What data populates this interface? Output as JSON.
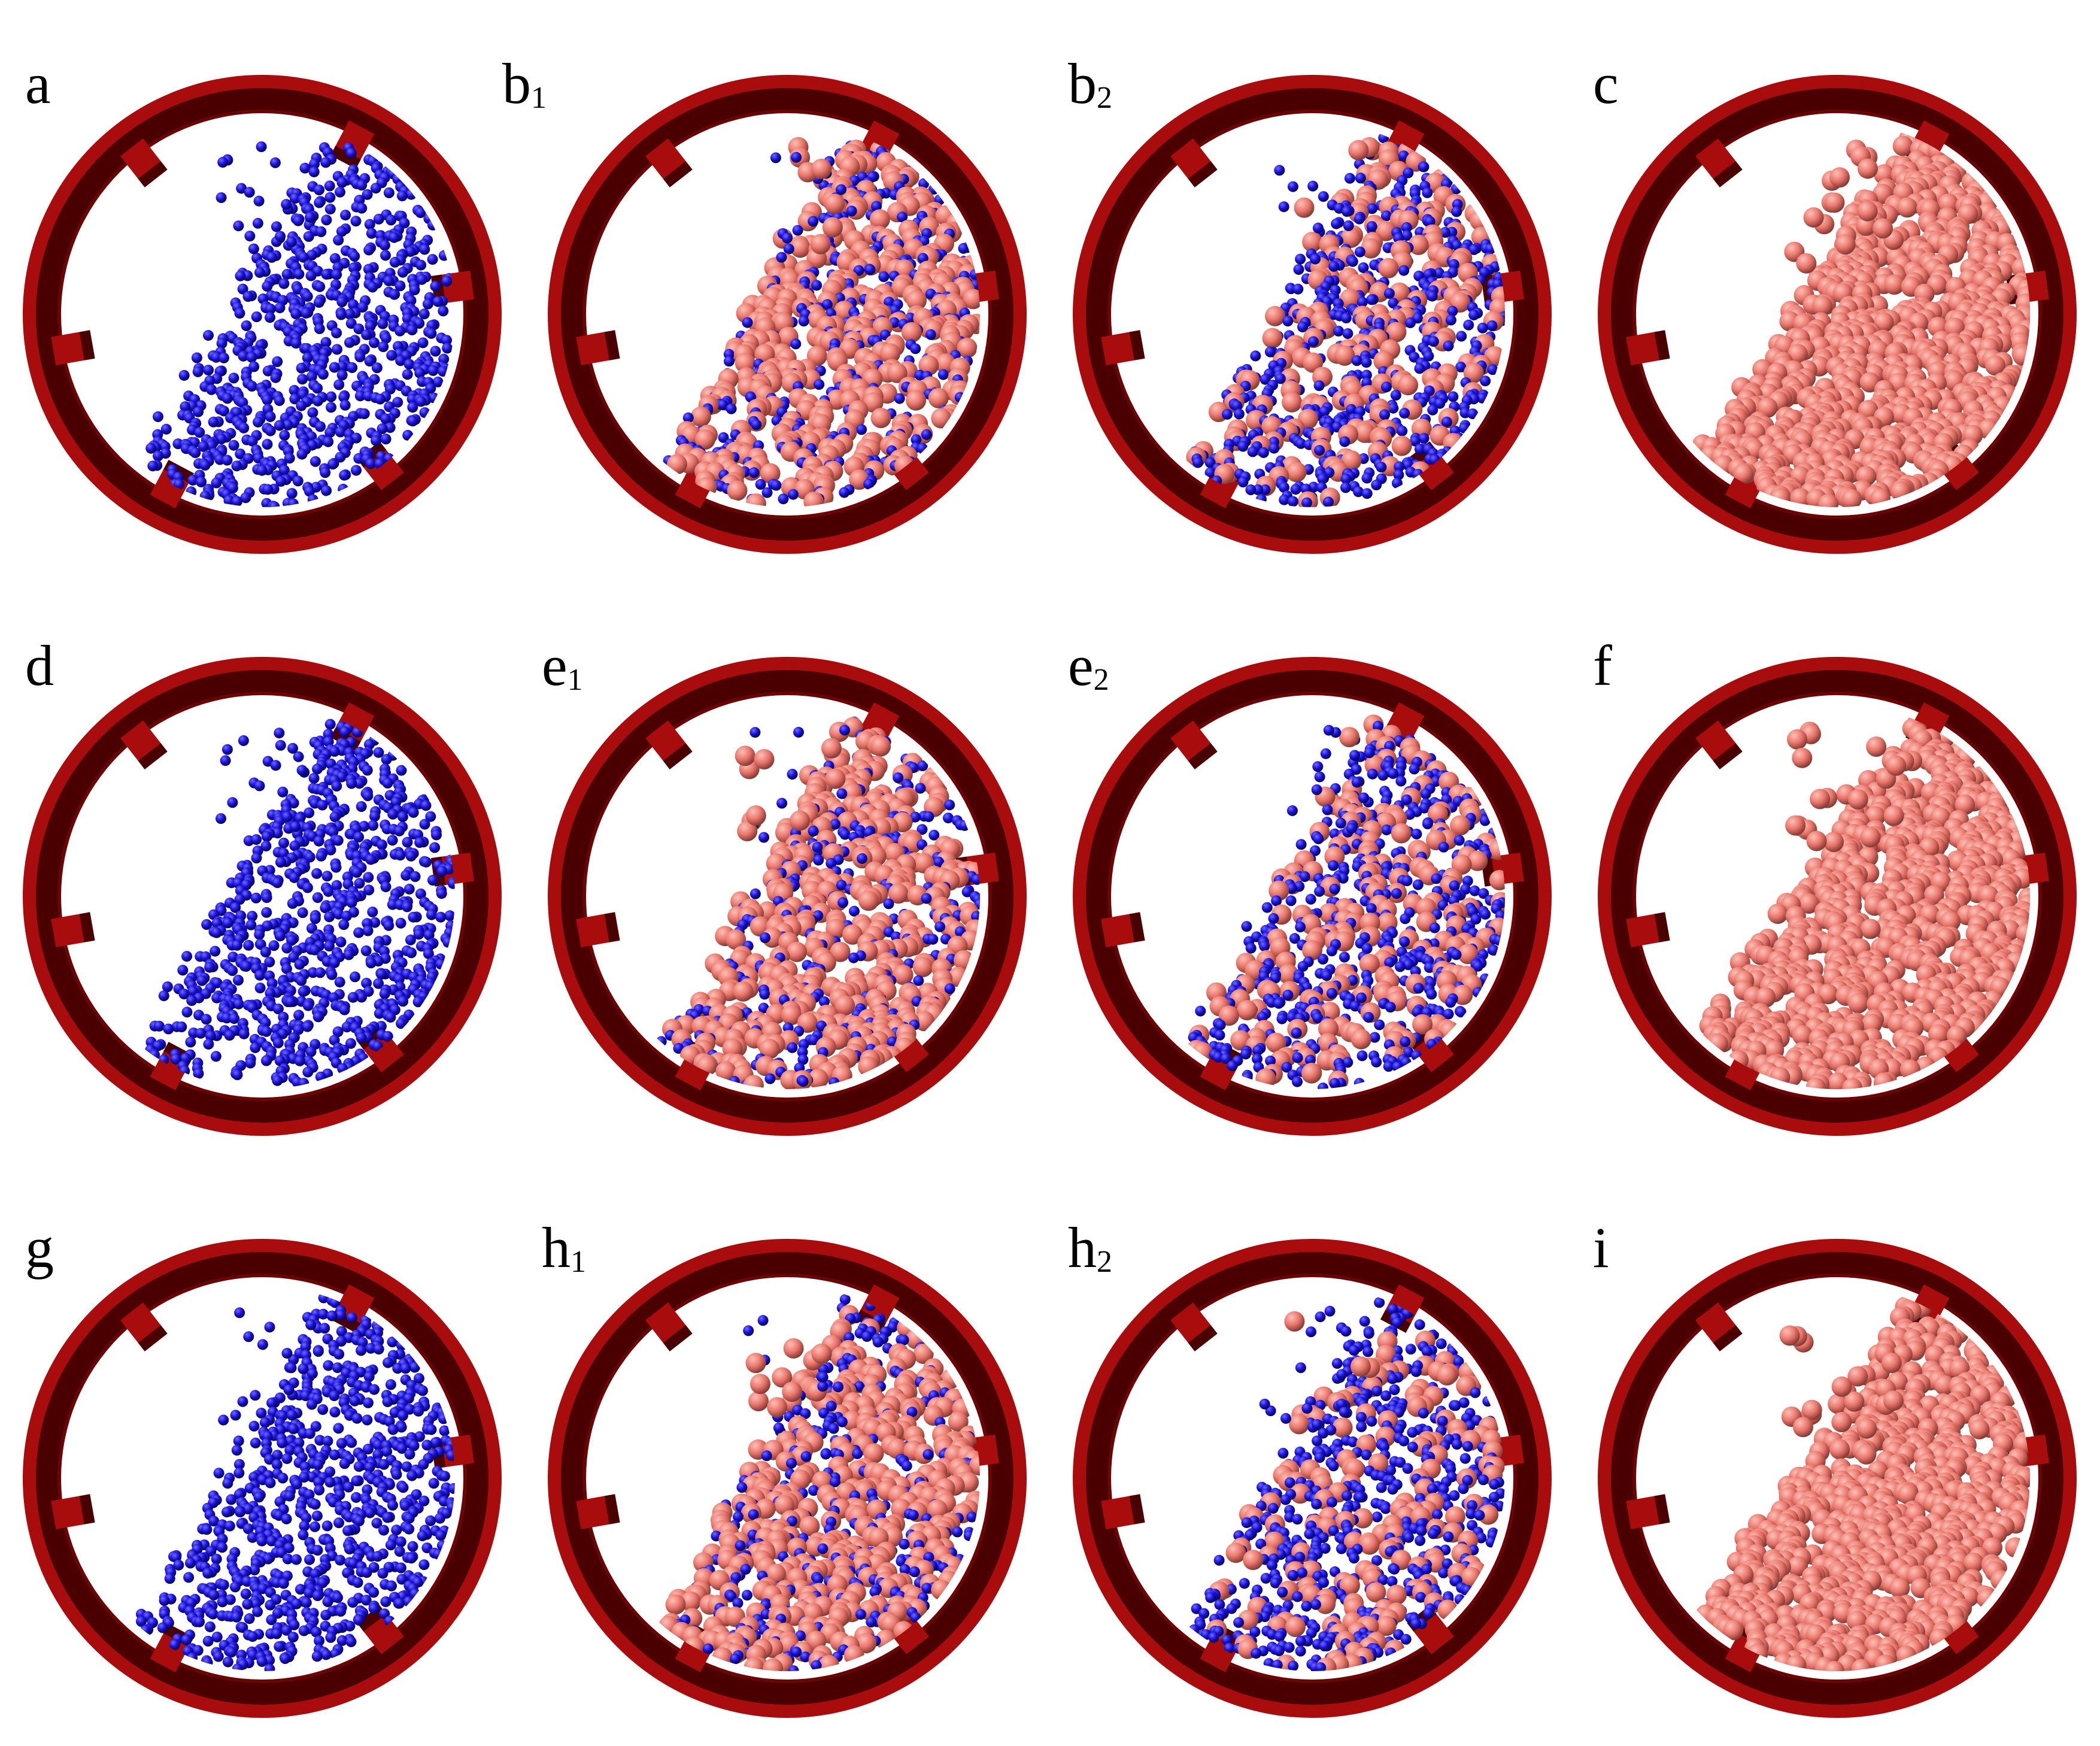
{
  "colors": {
    "shell": "#a80c0c",
    "shell_dark": "#4a0000",
    "shell_inner": "#6b0404",
    "small_particle": "#1a10d8",
    "small_particle_highlight": "#6f6cff",
    "large_particle": "#e8766c",
    "large_particle_highlight": "#ffc0b6",
    "background": "#ffffff"
  },
  "icons": {
    "drum": "rotating-drum-with-lifters",
    "small_particle": "blue-sphere",
    "large_particle": "salmon-sphere"
  },
  "panels": [
    {
      "id": "a",
      "letter": "a",
      "sub": "",
      "small_fraction": 1.0
    },
    {
      "id": "b1",
      "letter": "b",
      "sub": "1",
      "small_fraction": 0.45
    },
    {
      "id": "b2",
      "letter": "b",
      "sub": "2",
      "small_fraction": 0.75
    },
    {
      "id": "c",
      "letter": "c",
      "sub": "",
      "small_fraction": 0.0
    },
    {
      "id": "d",
      "letter": "d",
      "sub": "",
      "small_fraction": 1.0
    },
    {
      "id": "e1",
      "letter": "e",
      "sub": "1",
      "small_fraction": 0.45
    },
    {
      "id": "e2",
      "letter": "e",
      "sub": "2",
      "small_fraction": 0.75
    },
    {
      "id": "f",
      "letter": "f",
      "sub": "",
      "small_fraction": 0.0
    },
    {
      "id": "g",
      "letter": "g",
      "sub": "",
      "small_fraction": 1.0
    },
    {
      "id": "h1",
      "letter": "h",
      "sub": "1",
      "small_fraction": 0.45
    },
    {
      "id": "h2",
      "letter": "h",
      "sub": "2",
      "small_fraction": 0.75
    },
    {
      "id": "i",
      "letter": "i",
      "sub": "",
      "small_fraction": 0.0
    }
  ]
}
